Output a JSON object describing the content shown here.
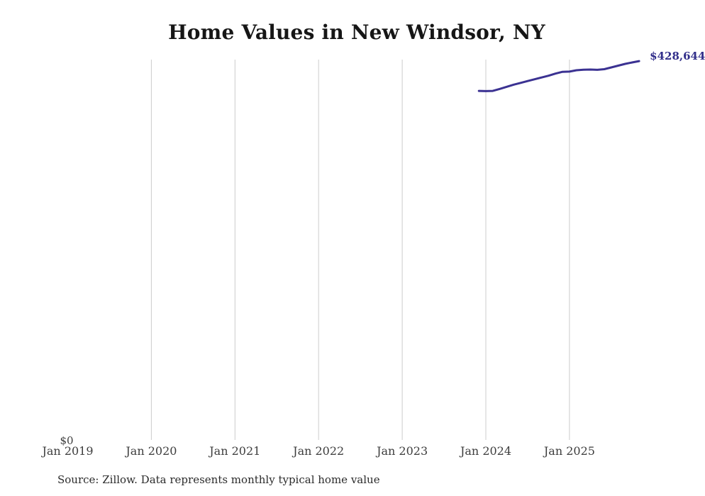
{
  "source_note": "Source: Zillow. Data represents monthly typical home value",
  "colors": {
    "background": "#ffffff",
    "line": "#3b3292",
    "end_label_text": "#312e8a",
    "gridline": "#cccccc",
    "title_text": "#161616",
    "axis_text": "#3d3d3d",
    "source_text": "#2b2b2b"
  },
  "chart_data": {
    "type": "line",
    "title": "Home Values in New Windsor, NY",
    "xlabel": "",
    "ylabel": "",
    "ylim": [
      0,
      428644
    ],
    "grid": "vertical-only",
    "legend": "none",
    "y_zero_label": "$0",
    "end_label": "$428,644",
    "x_ticks": [
      {
        "label": "Jan 2019",
        "year": 2019,
        "gridline": false
      },
      {
        "label": "Jan 2020",
        "year": 2020,
        "gridline": true
      },
      {
        "label": "Jan 2021",
        "year": 2021,
        "gridline": true
      },
      {
        "label": "Jan 2022",
        "year": 2022,
        "gridline": true
      },
      {
        "label": "Jan 2023",
        "year": 2023,
        "gridline": true
      },
      {
        "label": "Jan 2024",
        "year": 2024,
        "gridline": true
      },
      {
        "label": "Jan 2025",
        "year": 2025,
        "gridline": true
      }
    ],
    "series": [
      {
        "name": "Typical home value",
        "points": [
          {
            "month": "2023-12",
            "value": 394900
          },
          {
            "month": "2024-01",
            "value": 394700
          },
          {
            "month": "2024-02",
            "value": 394900
          },
          {
            "month": "2024-03",
            "value": 397200
          },
          {
            "month": "2024-04",
            "value": 399600
          },
          {
            "month": "2024-05",
            "value": 402000
          },
          {
            "month": "2024-06",
            "value": 404000
          },
          {
            "month": "2024-07",
            "value": 406100
          },
          {
            "month": "2024-08",
            "value": 408100
          },
          {
            "month": "2024-09",
            "value": 410100
          },
          {
            "month": "2024-10",
            "value": 412100
          },
          {
            "month": "2024-11",
            "value": 414500
          },
          {
            "month": "2024-12",
            "value": 416500
          },
          {
            "month": "2025-01",
            "value": 416800
          },
          {
            "month": "2025-02",
            "value": 418300
          },
          {
            "month": "2025-03",
            "value": 418900
          },
          {
            "month": "2025-04",
            "value": 419100
          },
          {
            "month": "2025-05",
            "value": 418800
          },
          {
            "month": "2025-06",
            "value": 419500
          },
          {
            "month": "2025-07",
            "value": 421500
          },
          {
            "month": "2025-08",
            "value": 423500
          },
          {
            "month": "2025-09",
            "value": 425500
          },
          {
            "month": "2025-10",
            "value": 427100
          },
          {
            "month": "2025-11",
            "value": 428644
          }
        ]
      }
    ]
  }
}
